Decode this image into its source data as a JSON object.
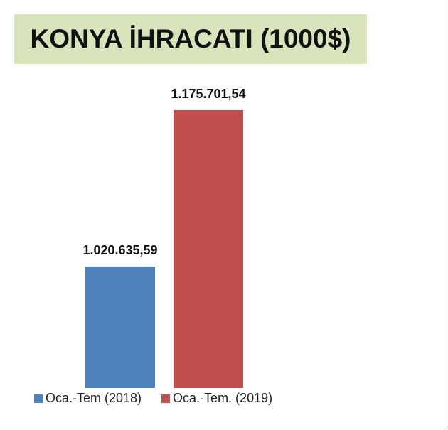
{
  "title": "KONYA İHRACATI (1000$)",
  "chart_data": {
    "type": "bar",
    "title": "KONYA İHRACATI (1000$)",
    "categories": [
      "Oca.-Tem (2018)",
      "Oca.-Tem. (2019)"
    ],
    "values": [
      1020635.59,
      1175701.54
    ],
    "value_labels": [
      "1.020.635,59",
      "1.175.701,54"
    ],
    "colors": [
      "#4f81bd",
      "#c0504d"
    ],
    "legend": "bottom",
    "grid": false,
    "xlabel": "",
    "ylabel": "",
    "ylim": [
      900000,
      1200000
    ]
  }
}
